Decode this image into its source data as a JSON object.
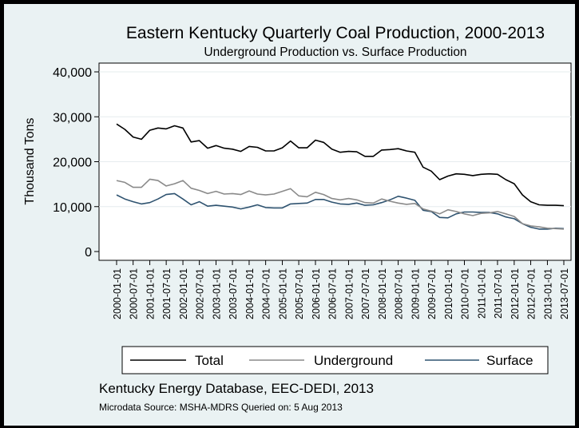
{
  "chart_data": {
    "type": "line",
    "title": "Eastern Kentucky Quarterly Coal Production, 2000-2013",
    "subtitle": "Underground Production vs. Surface Production",
    "ylabel": "Thousand Tons",
    "xlabel": "",
    "ylim": [
      0,
      40000
    ],
    "yticks": [
      0,
      10000,
      20000,
      30000,
      40000
    ],
    "ytick_labels": [
      "0",
      "10,000",
      "20,000",
      "30,000",
      "40,000"
    ],
    "xtick_labels": [
      "2000-01-01",
      "2000-07-01",
      "2001-01-01",
      "2001-07-01",
      "2002-01-01",
      "2002-07-01",
      "2003-01-01",
      "2003-07-01",
      "2004-01-01",
      "2004-07-01",
      "2005-01-01",
      "2005-07-01",
      "2006-01-01",
      "2006-07-01",
      "2007-01-01",
      "2007-07-01",
      "2008-01-01",
      "2008-07-01",
      "2009-01-01",
      "2009-07-01",
      "2010-01-01",
      "2010-07-01",
      "2011-01-01",
      "2011-07-01",
      "2012-01-01",
      "2012-07-01",
      "2013-01-01",
      "2013-07-01"
    ],
    "x": [
      "2000-01-01",
      "2000-04-01",
      "2000-07-01",
      "2000-10-01",
      "2001-01-01",
      "2001-04-01",
      "2001-07-01",
      "2001-10-01",
      "2002-01-01",
      "2002-04-01",
      "2002-07-01",
      "2002-10-01",
      "2003-01-01",
      "2003-04-01",
      "2003-07-01",
      "2003-10-01",
      "2004-01-01",
      "2004-04-01",
      "2004-07-01",
      "2004-10-01",
      "2005-01-01",
      "2005-04-01",
      "2005-07-01",
      "2005-10-01",
      "2006-01-01",
      "2006-04-01",
      "2006-07-01",
      "2006-10-01",
      "2007-01-01",
      "2007-04-01",
      "2007-07-01",
      "2007-10-01",
      "2008-01-01",
      "2008-04-01",
      "2008-07-01",
      "2008-10-01",
      "2009-01-01",
      "2009-04-01",
      "2009-07-01",
      "2009-10-01",
      "2010-01-01",
      "2010-04-01",
      "2010-07-01",
      "2010-10-01",
      "2011-01-01",
      "2011-04-01",
      "2011-07-01",
      "2011-10-01",
      "2012-01-01",
      "2012-04-01",
      "2012-07-01",
      "2012-10-01",
      "2013-01-01",
      "2013-04-01",
      "2013-07-01"
    ],
    "series": [
      {
        "name": "Total",
        "color": "#000000",
        "values": [
          28400,
          27200,
          25500,
          25000,
          27000,
          27500,
          27300,
          28000,
          27500,
          24400,
          24700,
          23000,
          23600,
          23000,
          22800,
          22300,
          23400,
          23200,
          22400,
          22400,
          23100,
          24600,
          23100,
          23100,
          24800,
          24300,
          22800,
          22100,
          22300,
          22200,
          21200,
          21200,
          22600,
          22700,
          22900,
          22400,
          22100,
          18800,
          17900,
          16000,
          16800,
          17300,
          17200,
          16900,
          17200,
          17300,
          17200,
          16000,
          15100,
          12600,
          11100,
          10400,
          10300,
          10300,
          10200
        ]
      },
      {
        "name": "Underground",
        "color": "#8a8a8a",
        "values": [
          15800,
          15400,
          14300,
          14300,
          16100,
          15800,
          14600,
          15100,
          15800,
          14100,
          13600,
          12900,
          13400,
          12800,
          12900,
          12700,
          13500,
          12800,
          12600,
          12800,
          13400,
          14000,
          12400,
          12200,
          13200,
          12700,
          11800,
          11500,
          11800,
          11500,
          10900,
          10800,
          11700,
          11200,
          10800,
          10500,
          10700,
          9500,
          9000,
          8400,
          9300,
          8900,
          8400,
          8000,
          8500,
          8600,
          8900,
          8400,
          7800,
          6200,
          5700,
          5500,
          5200,
          5100,
          5000
        ]
      },
      {
        "name": "Surface",
        "color": "#2f5370",
        "values": [
          12600,
          11700,
          11100,
          10600,
          10900,
          11700,
          12700,
          12900,
          11700,
          10400,
          11100,
          10100,
          10300,
          10100,
          9900,
          9500,
          9900,
          10400,
          9800,
          9700,
          9700,
          10600,
          10700,
          10800,
          11600,
          11600,
          11000,
          10600,
          10500,
          10800,
          10300,
          10400,
          10900,
          11500,
          12300,
          11900,
          11400,
          9200,
          8900,
          7600,
          7500,
          8400,
          8800,
          8800,
          8700,
          8700,
          8400,
          7700,
          7300,
          6200,
          5400,
          5000,
          5000,
          5200,
          5100
        ]
      }
    ],
    "legend_position": "bottom",
    "grid": true
  },
  "source": {
    "line1": "Kentucky Energy Database, EEC-DEDI, 2013",
    "line2": "Microdata Source: MSHA-MDRS Queried on: 5 Aug 2013"
  }
}
